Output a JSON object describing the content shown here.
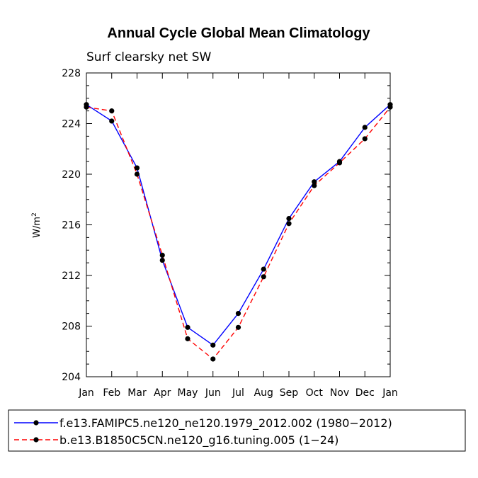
{
  "chart_data": {
    "type": "line",
    "title": "Annual Cycle Global Mean Climatology",
    "subtitle": "Surf clearsky net SW",
    "ylabel": "W/m",
    "ylabel_superscript": "2",
    "ylim": [
      204,
      228
    ],
    "yticks": [
      "204",
      "208",
      "212",
      "216",
      "220",
      "224",
      "228"
    ],
    "categories": [
      "Jan",
      "Feb",
      "Mar",
      "Apr",
      "May",
      "Jun",
      "Jul",
      "Aug",
      "Sep",
      "Oct",
      "Nov",
      "Dec",
      "Jan"
    ],
    "grid": false,
    "legend_position": "bottom",
    "series": [
      {
        "name": "f.e13.FAMIPC5.ne120_ne120.1979_2012.002 (1980−2012)",
        "color": "#0000ff",
        "dash": "solid",
        "marker": "filled-circle",
        "values": [
          225.5,
          224.2,
          220.5,
          213.2,
          207.9,
          206.5,
          209.0,
          212.5,
          216.5,
          219.4,
          221.0,
          223.7,
          225.5
        ]
      },
      {
        "name": "b.e13.B1850C5CN.ne120_g16.tuning.005 (1−24)",
        "color": "#ff0000",
        "dash": "dashed",
        "marker": "filled-circle",
        "values": [
          225.3,
          225.0,
          220.0,
          213.6,
          207.0,
          205.4,
          207.9,
          211.9,
          216.1,
          219.1,
          220.9,
          222.8,
          225.3
        ]
      }
    ]
  }
}
